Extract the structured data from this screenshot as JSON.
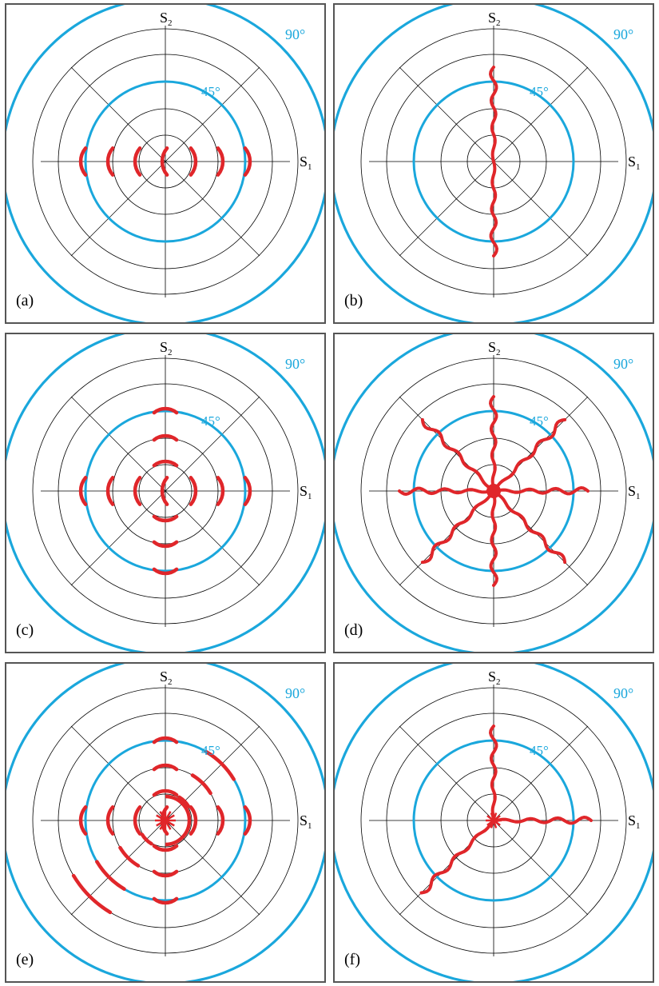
{
  "axis_labels": {
    "s1": "S",
    "s1_sub": "1",
    "s2": "S",
    "s2_sub": "2"
  },
  "ring_labels": {
    "outer": "90°",
    "inner": "45°"
  },
  "colors": {
    "ring": "#1aa7dc",
    "trace": "#e0262a",
    "grid": "#000000",
    "frame": "#555555"
  },
  "panels": [
    {
      "id": "a",
      "label": "(a)"
    },
    {
      "id": "b",
      "label": "(b)"
    },
    {
      "id": "c",
      "label": "(c)"
    },
    {
      "id": "d",
      "label": "(d)"
    },
    {
      "id": "e",
      "label": "(e)"
    },
    {
      "id": "f",
      "label": "(f)"
    }
  ]
}
